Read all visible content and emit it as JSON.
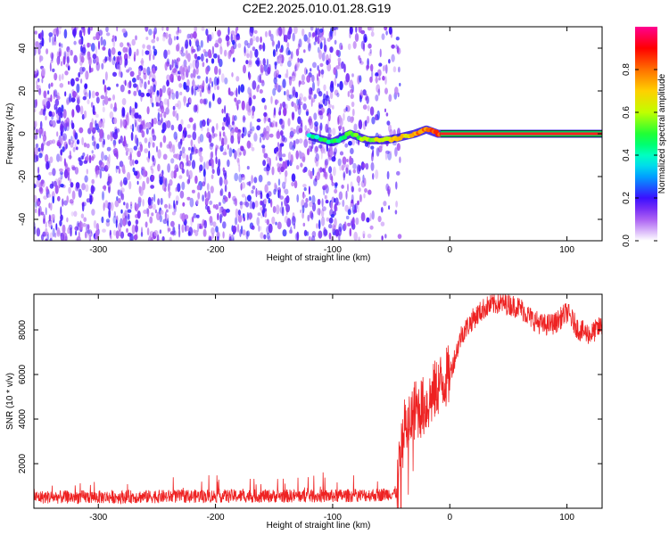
{
  "title": "C2E2.2025.010.01.28.G19",
  "chart_data": [
    {
      "type": "heatmap",
      "xlabel": "Height of straight line (km)",
      "ylabel": "Frequency (Hz)",
      "xlim": [
        -355,
        130
      ],
      "ylim": [
        -50,
        50
      ],
      "xticks": [
        -300,
        -200,
        -100,
        0,
        100
      ],
      "yticks": [
        -40,
        -20,
        0,
        20,
        40
      ],
      "colorbar": {
        "label": "Normalized spectral amplitude",
        "range": [
          0,
          1
        ],
        "ticks": [
          0.0,
          0.2,
          0.4,
          0.6,
          0.8
        ]
      },
      "noise_region_x": [
        -355,
        -65
      ],
      "signal_track": [
        {
          "x": -120,
          "y": -1
        },
        {
          "x": -100,
          "y": -4
        },
        {
          "x": -85,
          "y": 0
        },
        {
          "x": -70,
          "y": -3
        },
        {
          "x": -55,
          "y": -3
        },
        {
          "x": -45,
          "y": -2
        },
        {
          "x": -30,
          "y": 0
        },
        {
          "x": -20,
          "y": 2
        },
        {
          "x": -10,
          "y": 0
        },
        {
          "x": 0,
          "y": 0
        },
        {
          "x": 130,
          "y": 0
        }
      ]
    },
    {
      "type": "line",
      "xlabel": "Height of straight line (km)",
      "ylabel": "SNR (10 * v/v)",
      "xlim": [
        -355,
        130
      ],
      "ylim": [
        0,
        9600
      ],
      "xticks": [
        -300,
        -200,
        -100,
        0,
        100
      ],
      "yticks": [
        2000,
        4000,
        6000,
        8000
      ],
      "color": "#ee2222",
      "envelope": {
        "x": [
          -355,
          -300,
          -200,
          -100,
          -60,
          -45,
          -40,
          -35,
          -30,
          -20,
          -10,
          0,
          10,
          20,
          30,
          40,
          50,
          60,
          70,
          80,
          90,
          100,
          110,
          120,
          130
        ],
        "y": [
          500,
          500,
          550,
          550,
          600,
          700,
          3500,
          3800,
          4400,
          4600,
          5500,
          6000,
          7800,
          8500,
          9000,
          9200,
          9150,
          9000,
          8500,
          8200,
          8300,
          8800,
          8000,
          7800,
          8200
        ]
      }
    }
  ]
}
